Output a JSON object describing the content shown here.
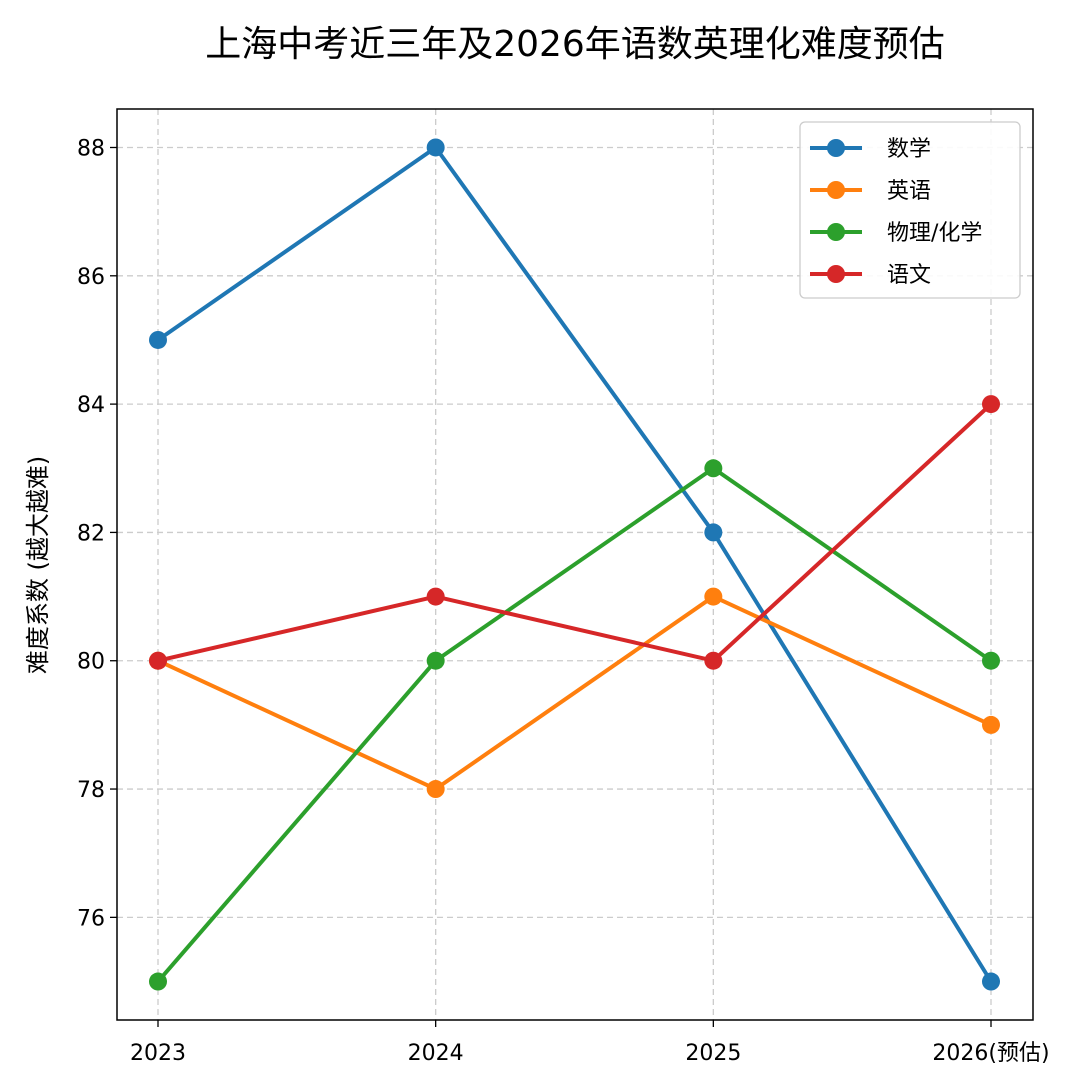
{
  "chart_data": {
    "type": "line",
    "title": "上海中考近三年及2026年语数英理化难度预估",
    "xlabel": "",
    "ylabel": "难度系数 (越大越难)",
    "categories": [
      "2023",
      "2024",
      "2025",
      "2026(预估)"
    ],
    "ylim": [
      74.4,
      88.6
    ],
    "yticks": [
      76,
      78,
      80,
      82,
      84,
      86,
      88
    ],
    "grid": true,
    "legend_position": "top-right",
    "series": [
      {
        "name": "数学",
        "color": "#1f77b4",
        "values": [
          85,
          88,
          82,
          75
        ]
      },
      {
        "name": "英语",
        "color": "#ff7f0e",
        "values": [
          80,
          78,
          81,
          79
        ]
      },
      {
        "name": "物理/化学",
        "color": "#2ca02c",
        "values": [
          75,
          80,
          83,
          80
        ]
      },
      {
        "name": "语文",
        "color": "#d62728",
        "values": [
          80,
          81,
          80,
          84
        ]
      }
    ]
  }
}
